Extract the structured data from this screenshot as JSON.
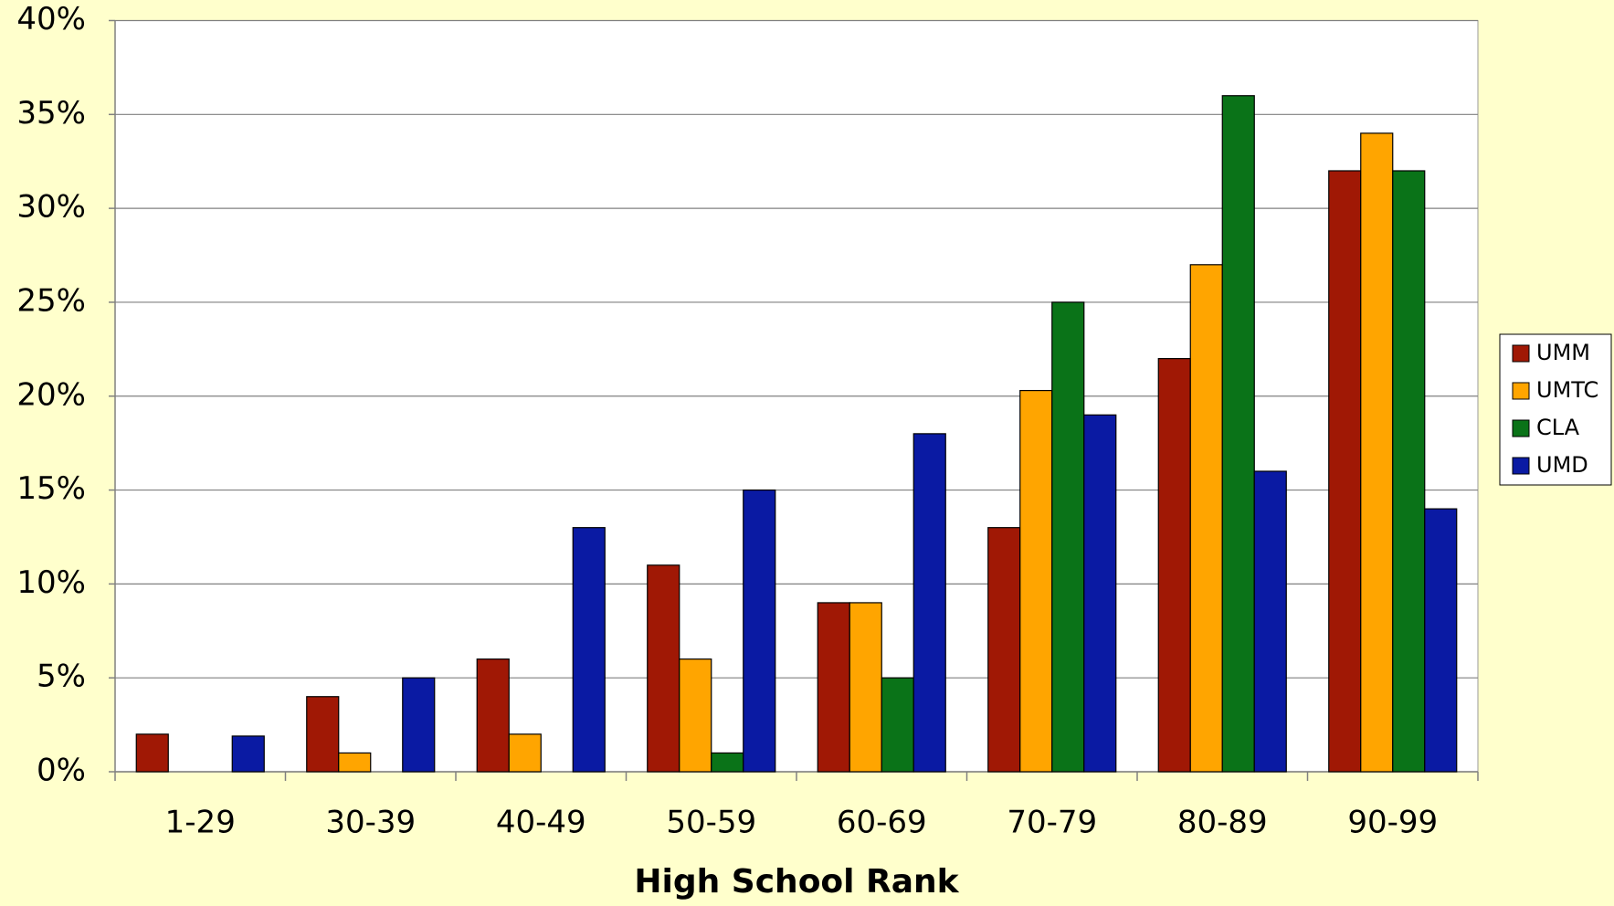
{
  "chart_data": {
    "type": "bar",
    "x_label": "High School Rank",
    "categories": [
      "1-29",
      "30-39",
      "40-49",
      "50-59",
      "60-69",
      "70-79",
      "80-89",
      "90-99"
    ],
    "series": [
      {
        "name": "UMM",
        "color": "#a01805",
        "values": [
          2,
          4,
          6,
          11,
          9,
          13,
          22,
          32
        ]
      },
      {
        "name": "UMTC",
        "color": "#ffa500",
        "values": [
          0,
          1,
          2,
          6,
          9,
          20.3,
          27,
          34
        ]
      },
      {
        "name": "CLA",
        "color": "#0a7318",
        "values": [
          0,
          0,
          0,
          1,
          5,
          25,
          36,
          32
        ]
      },
      {
        "name": "UMD",
        "color": "#0a1aa3",
        "values": [
          1.9,
          5,
          13,
          15,
          18,
          19,
          16,
          14
        ]
      }
    ],
    "ylim": [
      0,
      40
    ],
    "yticks": [
      {
        "value": 0,
        "label": "0%"
      },
      {
        "value": 5,
        "label": "5%"
      },
      {
        "value": 10,
        "label": "10%"
      },
      {
        "value": 15,
        "label": "15%"
      },
      {
        "value": 20,
        "label": "20%"
      },
      {
        "value": 25,
        "label": "25%"
      },
      {
        "value": 30,
        "label": "30%"
      },
      {
        "value": 35,
        "label": "35%"
      },
      {
        "value": 40,
        "label": "40%"
      }
    ],
    "grid": true,
    "legend": "right"
  }
}
